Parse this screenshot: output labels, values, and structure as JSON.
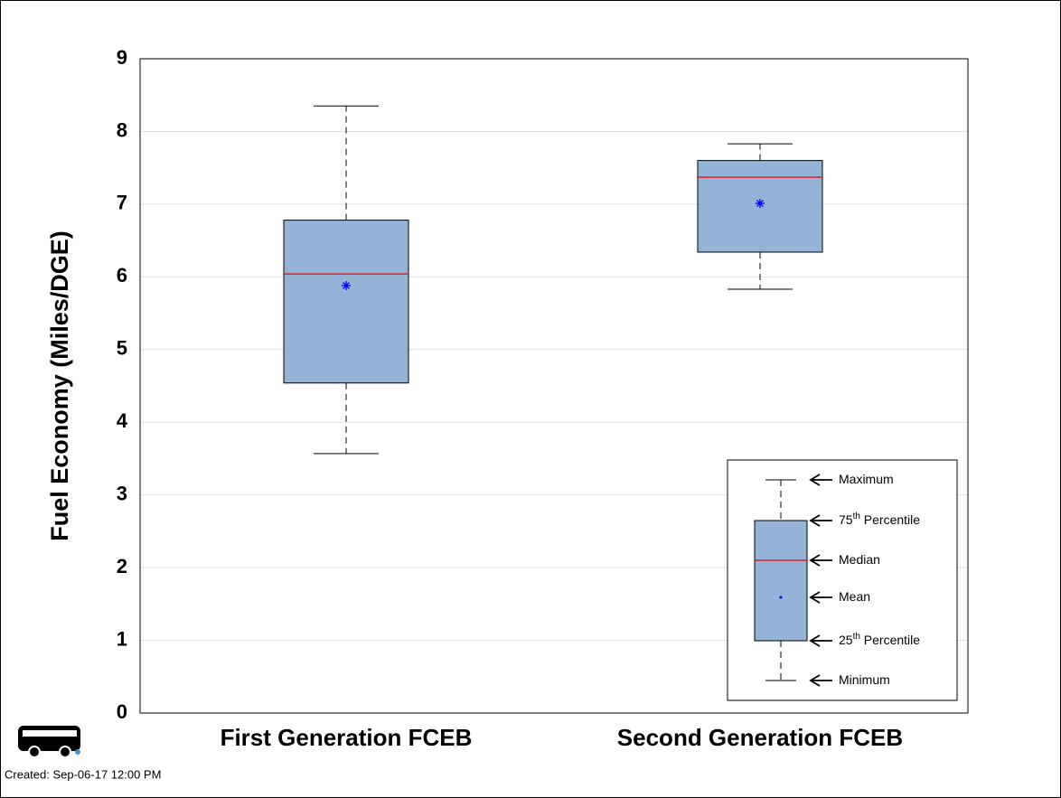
{
  "chart_data": {
    "type": "box",
    "ylabel": "Fuel Economy (Miles/DGE)",
    "categories": [
      "First Generation FCEB",
      "Second Generation FCEB"
    ],
    "boxes": [
      {
        "min": 3.57,
        "q1": 4.54,
        "median": 6.04,
        "mean": 5.88,
        "q3": 6.78,
        "max": 8.35
      },
      {
        "min": 5.83,
        "q1": 6.34,
        "median": 7.37,
        "mean": 7.01,
        "q3": 7.6,
        "max": 7.83
      }
    ],
    "box_color": "#95b3d7",
    "median_color": "#e0202a",
    "mean_color": "#0000ff",
    "ylim": [
      0,
      9
    ],
    "yticks": [
      0,
      1,
      2,
      3,
      4,
      5,
      6,
      7,
      8,
      9
    ],
    "grid": true,
    "legend": {
      "position": "lower right",
      "items": [
        [
          "Maximum"
        ],
        [
          "75",
          "th",
          " Percentile"
        ],
        [
          "Median"
        ],
        [
          "Mean"
        ],
        [
          "25",
          "th",
          " Percentile"
        ],
        [
          "Minimum"
        ]
      ]
    },
    "footer": "Created: Sep-06-17 12:00 PM"
  }
}
